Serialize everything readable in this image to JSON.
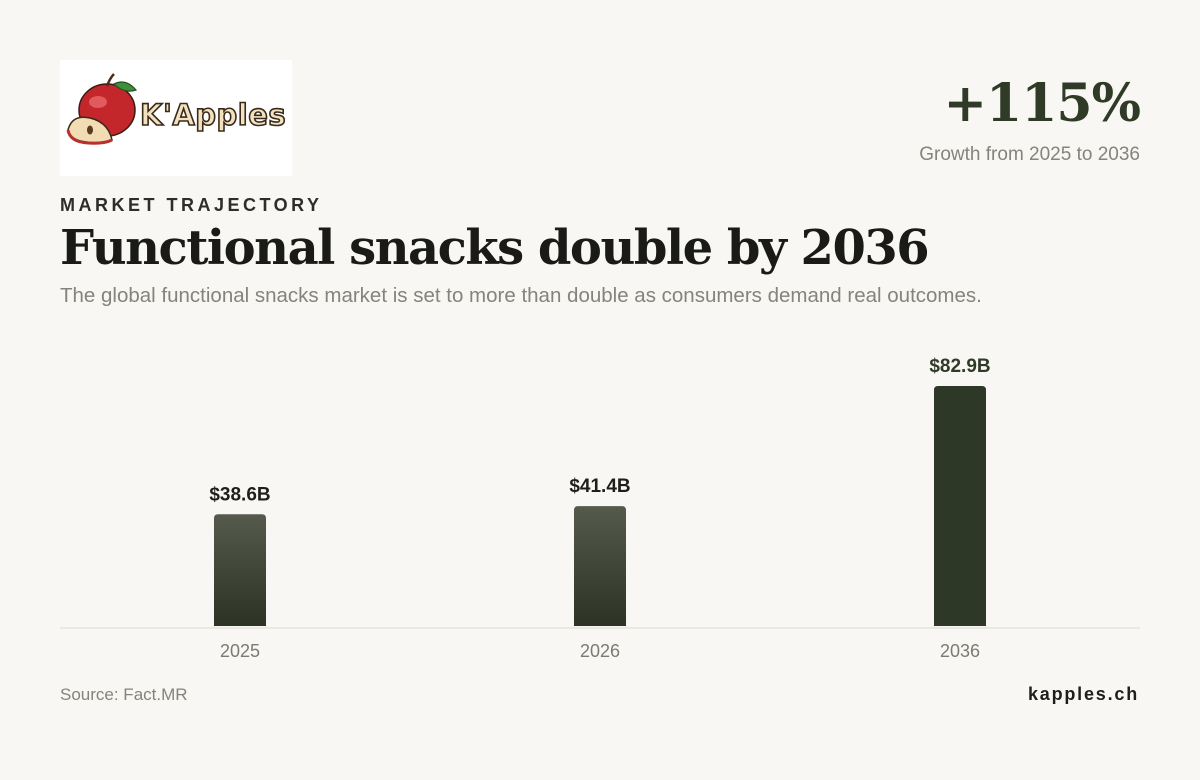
{
  "brand": {
    "logo_text": "K'Apples",
    "site": "kapples.ch"
  },
  "kpi": {
    "value": "+115%",
    "caption": "Growth from 2025 to 2036"
  },
  "header": {
    "eyebrow": "MARKET TRAJECTORY",
    "title": "Functional snacks double by 2036",
    "subtitle": "The global functional snacks market is set to more than double as consumers demand real outcomes."
  },
  "footer": {
    "source": "Source: Fact.MR"
  },
  "colors": {
    "bar_light_top": "#555a4c",
    "bar_light_bottom": "#2c3324",
    "bar_highlight": "#2e3826",
    "axis": "#dddbd4",
    "tick_label": "#7c7a74",
    "value_label": "#1e1e1c",
    "value_label_highlight": "#2f3a27"
  },
  "chart_data": {
    "type": "bar",
    "title": "",
    "xlabel": "",
    "ylabel": "",
    "categories": [
      "2025",
      "2026",
      "2036"
    ],
    "values": [
      38.6,
      41.4,
      82.9
    ],
    "value_labels": [
      "$38.6B",
      "$41.4B",
      "$82.9B"
    ],
    "unit": "B USD",
    "highlight_index": 2,
    "ylim": [
      0,
      82.9
    ],
    "grid": false,
    "legend": "none"
  }
}
